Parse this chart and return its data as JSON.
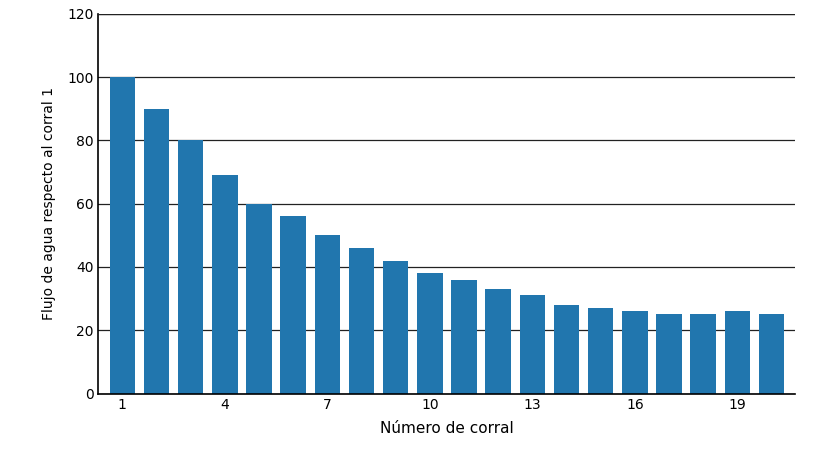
{
  "categories": [
    1,
    2,
    3,
    4,
    5,
    6,
    7,
    8,
    9,
    10,
    11,
    12,
    13,
    14,
    15,
    16,
    17,
    18,
    19,
    20
  ],
  "values": [
    100,
    90,
    80,
    69,
    60,
    56,
    50,
    46,
    42,
    38,
    36,
    33,
    31,
    28,
    27,
    26,
    25,
    25,
    26,
    25
  ],
  "bar_color": "#2176AE",
  "xlabel": "Número de corral",
  "ylabel": "Flujo de agua respecto al corral 1",
  "ylim": [
    0,
    120
  ],
  "yticks": [
    0,
    20,
    40,
    60,
    80,
    100,
    120
  ],
  "xticks": [
    1,
    4,
    7,
    10,
    13,
    16,
    19
  ],
  "background_color": "#ffffff",
  "bar_width": 0.75,
  "grid_color": "#222222",
  "grid_linewidth": 0.9,
  "axis_linewidth": 1.2,
  "xlabel_fontsize": 11,
  "ylabel_fontsize": 10,
  "tick_fontsize": 10,
  "xlim": [
    0.3,
    20.7
  ]
}
